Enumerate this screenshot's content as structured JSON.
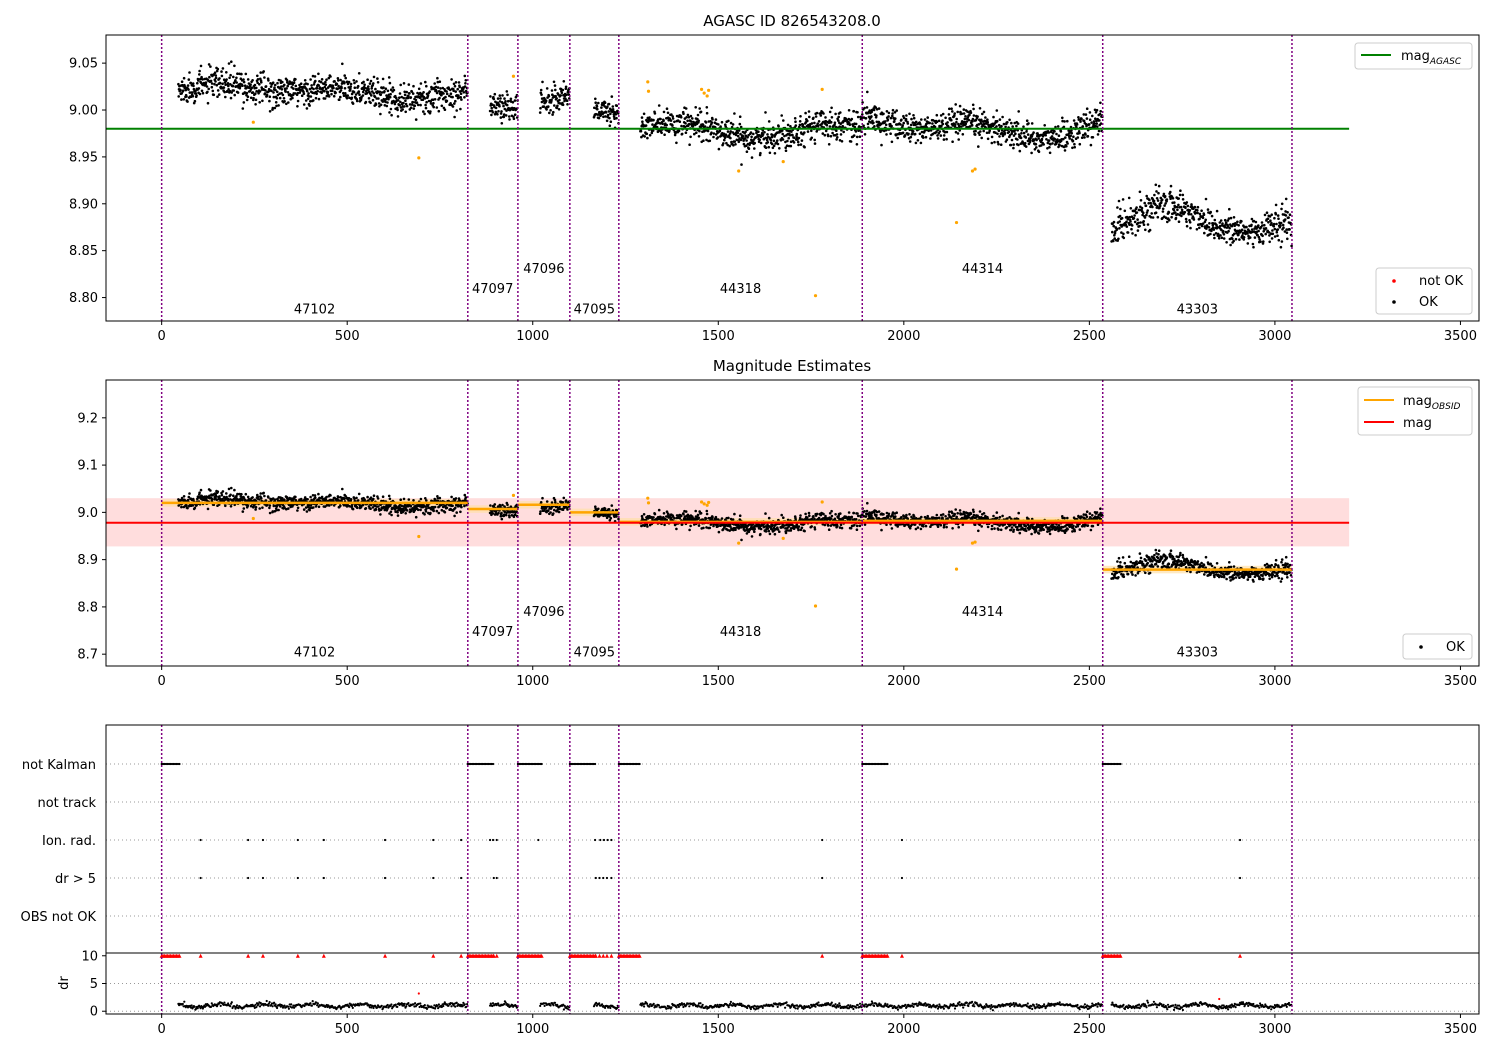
{
  "chart_data": [
    {
      "type": "scatter",
      "title": "AGASC ID 826543208.0",
      "xlim": [
        -150,
        3550
      ],
      "ylim": [
        8.775,
        9.08
      ],
      "xticks": [
        "0",
        "500",
        "1000",
        "1500",
        "2000",
        "2500",
        "3000",
        "3500"
      ],
      "yticks": [
        "8.80",
        "8.85",
        "8.90",
        "8.95",
        "9.00",
        "9.05"
      ],
      "legend_upper": {
        "position": "top-right",
        "entries": [
          {
            "label": "mag",
            "subscript": "AGASC",
            "color": "#008000"
          }
        ]
      },
      "legend_lower": {
        "position": "bottom-right",
        "entries": [
          {
            "label": "not OK",
            "color": "#ff0000"
          },
          {
            "label": "OK",
            "color": "#000000"
          }
        ]
      },
      "mag_agasc": 8.98,
      "mag_agasc_xrange": [
        -150,
        3200
      ],
      "obsid_boundaries": [
        0,
        825,
        960,
        1100,
        1232,
        1888,
        2536,
        3046
      ],
      "obsids": [
        {
          "label": "47102",
          "x": 412,
          "y": 8.783
        },
        {
          "label": "47097",
          "x": 892,
          "y": 8.805
        },
        {
          "label": "47096",
          "x": 1030,
          "y": 8.826
        },
        {
          "label": "47095",
          "x": 1166,
          "y": 8.783
        },
        {
          "label": "44318",
          "x": 1560,
          "y": 8.805
        },
        {
          "label": "44314",
          "x": 2212,
          "y": 8.826
        },
        {
          "label": "43303",
          "x": 2791,
          "y": 8.783
        }
      ],
      "segments": [
        {
          "xstart": 45,
          "xend": 825,
          "level": 9.02,
          "amp": 0.009,
          "noise": 0.008
        },
        {
          "xstart": 885,
          "xend": 960,
          "level": 9.007,
          "amp": 0.007,
          "noise": 0.008
        },
        {
          "xstart": 1020,
          "xend": 1100,
          "level": 9.017,
          "amp": 0.015,
          "noise": 0.008
        },
        {
          "xstart": 1165,
          "xend": 1232,
          "level": 9.0,
          "amp": 0.006,
          "noise": 0.007
        },
        {
          "xstart": 1290,
          "xend": 1888,
          "level": 8.98,
          "amp": 0.01,
          "noise": 0.008
        },
        {
          "xstart": 1888,
          "xend": 2536,
          "level": 8.982,
          "amp": 0.014,
          "noise": 0.008
        },
        {
          "xstart": 2560,
          "xend": 3046,
          "level": 8.878,
          "amp": 0.02,
          "noise": 0.009
        }
      ],
      "not_ok_points": [
        {
          "x": 247,
          "y": 8.987
        },
        {
          "x": 693,
          "y": 8.949
        },
        {
          "x": 948,
          "y": 9.036
        },
        {
          "x": 1310,
          "y": 9.03
        },
        {
          "x": 1312,
          "y": 9.02
        },
        {
          "x": 1455,
          "y": 9.022
        },
        {
          "x": 1462,
          "y": 9.018
        },
        {
          "x": 1470,
          "y": 9.015
        },
        {
          "x": 1474,
          "y": 9.021
        },
        {
          "x": 1555,
          "y": 8.935
        },
        {
          "x": 1675,
          "y": 8.945
        },
        {
          "x": 1762,
          "y": 8.802
        },
        {
          "x": 1780,
          "y": 9.022
        },
        {
          "x": 2142,
          "y": 8.88
        },
        {
          "x": 2185,
          "y": 8.935
        },
        {
          "x": 2192,
          "y": 8.937
        }
      ]
    },
    {
      "type": "scatter",
      "title": "Magnitude Estimates",
      "xlim": [
        -150,
        3550
      ],
      "ylim": [
        8.675,
        9.28
      ],
      "xticks": [
        "0",
        "500",
        "1000",
        "1500",
        "2000",
        "2500",
        "3000",
        "3500"
      ],
      "yticks": [
        "8.7",
        "8.8",
        "8.9",
        "9.0",
        "9.1",
        "9.2"
      ],
      "legend_upper": {
        "position": "top-right",
        "entries": [
          {
            "label": "mag",
            "subscript": "OBSID",
            "color": "#ffa500"
          },
          {
            "label": "mag",
            "color": "#ff0000"
          }
        ]
      },
      "legend_lower": {
        "position": "bottom-right",
        "entries": [
          {
            "label": "OK",
            "color": "#000000"
          }
        ]
      },
      "mag": 8.978,
      "mag_band": [
        8.928,
        9.03
      ],
      "mag_xrange": [
        -150,
        3200
      ],
      "mag_obsid": [
        {
          "xstart": 0,
          "xend": 825,
          "value": 9.02
        },
        {
          "xstart": 825,
          "xend": 960,
          "value": 9.007
        },
        {
          "xstart": 960,
          "xend": 1100,
          "value": 9.016
        },
        {
          "xstart": 1100,
          "xend": 1232,
          "value": 9.0
        },
        {
          "xstart": 1232,
          "xend": 1888,
          "value": 8.98
        },
        {
          "xstart": 1888,
          "xend": 2536,
          "value": 8.982
        },
        {
          "xstart": 2536,
          "xend": 3046,
          "value": 8.879
        }
      ],
      "obsids": [
        {
          "label": "47102",
          "x": 412,
          "y": 8.695
        },
        {
          "label": "47097",
          "x": 892,
          "y": 8.738
        },
        {
          "label": "47096",
          "x": 1030,
          "y": 8.781
        },
        {
          "label": "47095",
          "x": 1166,
          "y": 8.695
        },
        {
          "label": "44318",
          "x": 1560,
          "y": 8.738
        },
        {
          "label": "44314",
          "x": 2212,
          "y": 8.781
        },
        {
          "label": "43303",
          "x": 2791,
          "y": 8.695
        }
      ]
    },
    {
      "type": "scatter",
      "title": "",
      "xlim": [
        -150,
        3550
      ],
      "categories": [
        "not Kalman",
        "not track",
        "Ion. rad.",
        "dr > 5",
        "OBS not OK"
      ],
      "flags": {
        "not Kalman": [
          [
            0,
            50
          ],
          [
            825,
            895
          ],
          [
            960,
            1025
          ],
          [
            1100,
            1168
          ],
          [
            1232,
            1290
          ],
          [
            1888,
            1958
          ],
          [
            2536,
            2585
          ]
        ],
        "Ion. rad.": [
          105,
          233,
          273,
          367,
          437,
          602,
          732,
          807,
          885,
          893,
          903,
          1015,
          1168,
          1182,
          1192,
          1202,
          1212,
          1780,
          1995,
          2906
        ],
        "dr > 5": [
          105,
          233,
          273,
          367,
          437,
          602,
          732,
          807,
          895,
          903,
          1170,
          1180,
          1190,
          1200,
          1212,
          1780,
          1995,
          2906
        ]
      }
    },
    {
      "type": "scatter",
      "title": "",
      "xlim": [
        -150,
        3550
      ],
      "ylim": [
        -0.5,
        10.5
      ],
      "ylabel": "dr",
      "xticks": [
        "0",
        "500",
        "1000",
        "1500",
        "2000",
        "2500",
        "3000",
        "3500"
      ],
      "yticks": [
        "0",
        "5",
        "10"
      ],
      "dr_level": 1.0,
      "high_dr_points": [
        {
          "x": 693,
          "y": 3.2
        },
        {
          "x": 2850,
          "y": 2.2
        }
      ]
    }
  ]
}
